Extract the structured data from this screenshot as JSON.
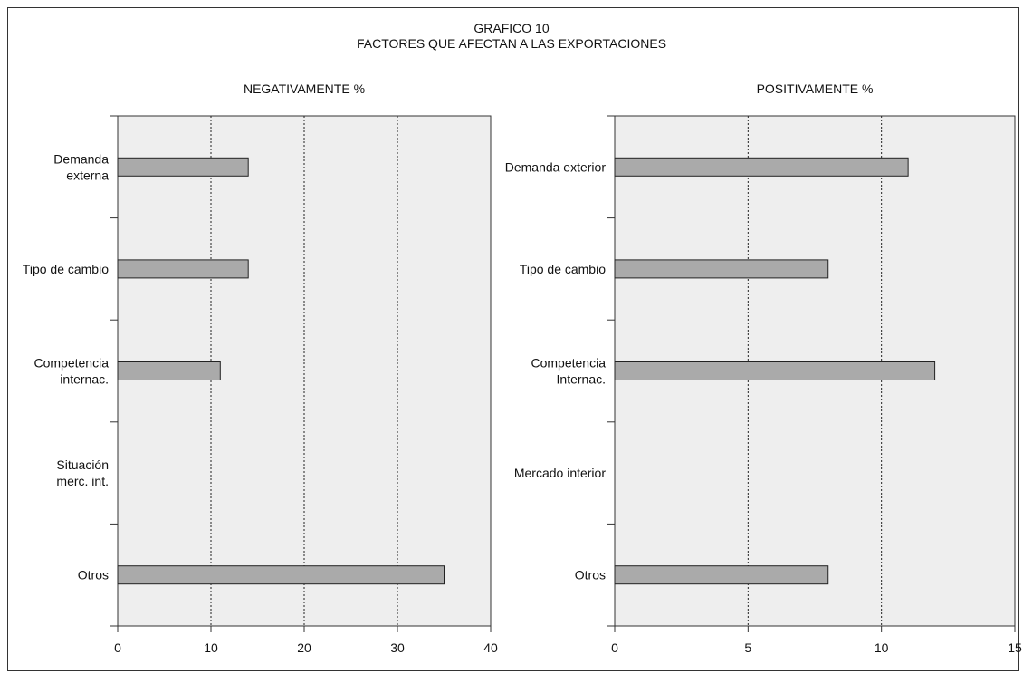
{
  "figure": {
    "title": "GRAFICO 10",
    "subtitle": "FACTORES QUE AFECTAN A LAS EXPORTACIONES"
  },
  "chart_data": [
    {
      "type": "bar",
      "orientation": "horizontal",
      "title": "NEGATIVAMENTE %",
      "categories": [
        [
          "Demanda",
          "externa"
        ],
        [
          "Tipo de cambio"
        ],
        [
          "Competencia",
          "internac."
        ],
        [
          "Situación",
          "merc. int."
        ],
        [
          "Otros"
        ]
      ],
      "values": [
        14,
        14,
        11,
        0,
        35
      ],
      "xlim": [
        0,
        40
      ],
      "xticks": [
        0,
        10,
        20,
        30,
        40
      ],
      "gridlines": [
        10,
        20,
        30
      ],
      "grid": true,
      "bar_color": "#aaaaaa",
      "plot_background": "#eeeeee"
    },
    {
      "type": "bar",
      "orientation": "horizontal",
      "title": "POSITIVAMENTE %",
      "categories": [
        [
          "Demanda exterior"
        ],
        [
          "Tipo de cambio"
        ],
        [
          "Competencia",
          "Internac."
        ],
        [
          "Mercado interior"
        ],
        [
          "Otros"
        ]
      ],
      "values": [
        11,
        8,
        12,
        0,
        8
      ],
      "xlim": [
        0,
        15
      ],
      "xticks": [
        0,
        5,
        10,
        15
      ],
      "gridlines": [
        5,
        10
      ],
      "grid": true,
      "bar_color": "#aaaaaa",
      "plot_background": "#eeeeee"
    }
  ]
}
